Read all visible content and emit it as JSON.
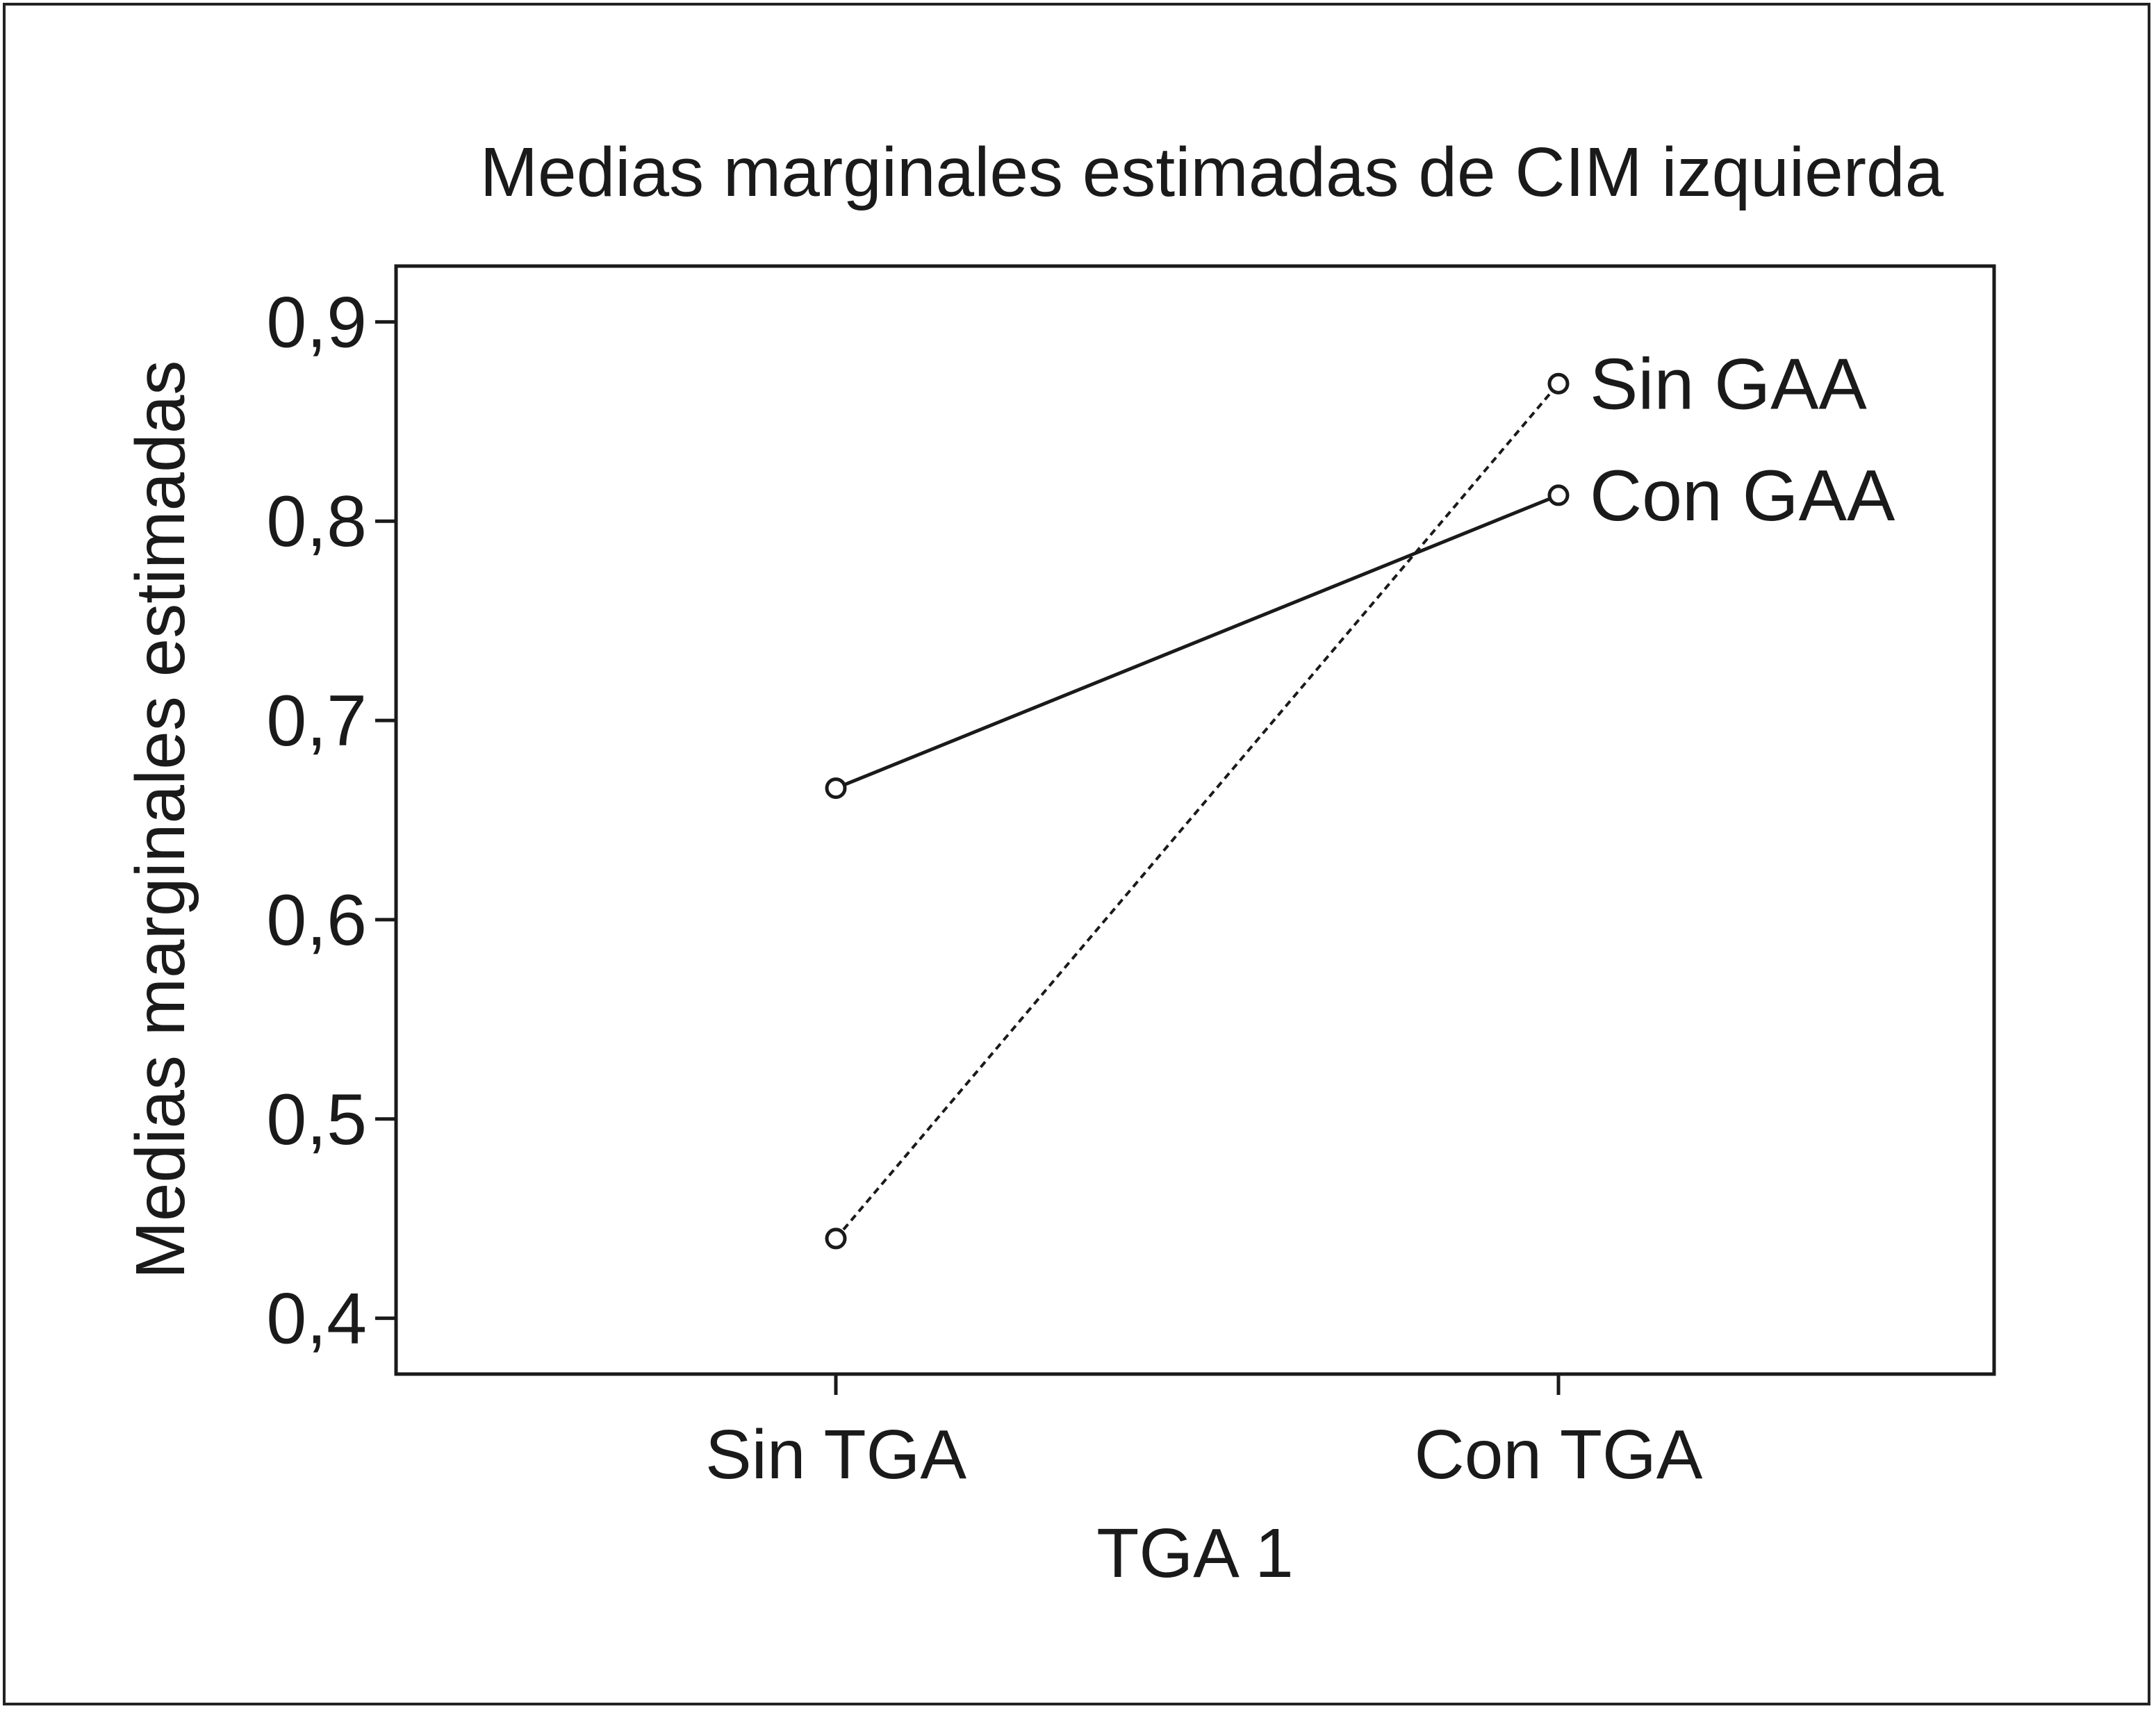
{
  "chart_data": {
    "type": "line",
    "title": "Medias marginales estimadas de CIM izquierda",
    "xlabel": "TGA 1",
    "ylabel": "Medias marginales estimadas",
    "categories": [
      "Sin TGA",
      "Con TGA"
    ],
    "ylim": [
      0.372,
      0.928
    ],
    "yticks": [
      0.4,
      0.5,
      0.6,
      0.7,
      0.8,
      0.9
    ],
    "ytick_labels": [
      "0,4",
      "0,5",
      "0,6",
      "0,7",
      "0,8",
      "0,9"
    ],
    "grid": false,
    "legend": "inline labels at line ends",
    "series": [
      {
        "name": "Sin GAA",
        "values": [
          0.44,
          0.869
        ],
        "style": "dotted",
        "color": "#1a1a1a"
      },
      {
        "name": "Con GAA",
        "values": [
          0.666,
          0.813
        ],
        "style": "solid",
        "color": "#1a1a1a"
      }
    ]
  }
}
